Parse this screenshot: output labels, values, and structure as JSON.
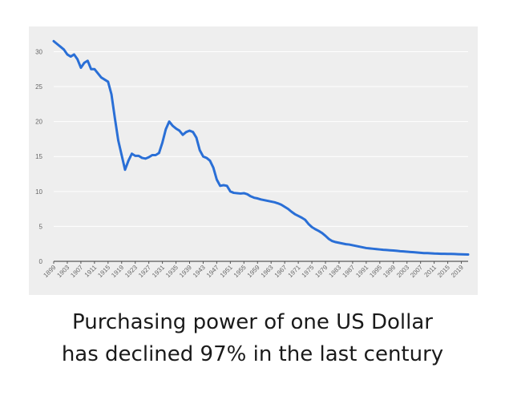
{
  "caption": {
    "line1": "Purchasing power of one US Dollar",
    "line2": "has declined 97% in the last century"
  },
  "colors": {
    "line": "#2a6fd6",
    "plot_bg": "#eeeeee",
    "grid": "#ffffff",
    "tick_text": "#666666"
  },
  "chart_data": {
    "type": "line",
    "title": "",
    "xlabel": "",
    "ylabel": "",
    "ylim": [
      0,
      32
    ],
    "yticks": [
      0,
      5,
      10,
      15,
      20,
      25,
      30
    ],
    "xlim": [
      1899,
      2021
    ],
    "xticks": [
      1899,
      1903,
      1907,
      1911,
      1915,
      1919,
      1923,
      1927,
      1931,
      1935,
      1939,
      1943,
      1947,
      1951,
      1955,
      1959,
      1963,
      1967,
      1971,
      1975,
      1979,
      1983,
      1987,
      1991,
      1995,
      1999,
      2003,
      2007,
      2011,
      2015,
      2019
    ],
    "grid": "horizontal",
    "series": [
      {
        "x": [
          1899,
          1900,
          1901,
          1902,
          1903,
          1904,
          1905,
          1906,
          1907,
          1908,
          1909,
          1910,
          1911,
          1912,
          1913,
          1914,
          1915,
          1916,
          1917,
          1918,
          1919,
          1920,
          1921,
          1922,
          1923,
          1924,
          1925,
          1926,
          1927,
          1928,
          1929,
          1930,
          1931,
          1932,
          1933,
          1934,
          1935,
          1936,
          1937,
          1938,
          1939,
          1940,
          1941,
          1942,
          1943,
          1944,
          1945,
          1946,
          1947,
          1948,
          1949,
          1950,
          1951,
          1952,
          1953,
          1954,
          1955,
          1956,
          1957,
          1958,
          1959,
          1960,
          1961,
          1962,
          1963,
          1964,
          1965,
          1966,
          1967,
          1968,
          1969,
          1970,
          1971,
          1972,
          1973,
          1974,
          1975,
          1976,
          1977,
          1978,
          1979,
          1980,
          1981,
          1982,
          1983,
          1984,
          1985,
          1986,
          1987,
          1988,
          1989,
          1990,
          1991,
          1992,
          1993,
          1994,
          1995,
          1996,
          1997,
          1998,
          1999,
          2000,
          2001,
          2002,
          2003,
          2004,
          2005,
          2006,
          2007,
          2008,
          2009,
          2010,
          2011,
          2012,
          2013,
          2014,
          2015,
          2016,
          2017,
          2018,
          2019,
          2020,
          2021
        ],
        "values": [
          31.5,
          31.1,
          30.7,
          30.3,
          29.6,
          29.3,
          29.6,
          28.9,
          27.7,
          28.4,
          28.7,
          27.5,
          27.5,
          26.9,
          26.3,
          26.0,
          25.7,
          23.9,
          20.5,
          17.3,
          15.2,
          13.1,
          14.4,
          15.4,
          15.1,
          15.1,
          14.8,
          14.7,
          14.9,
          15.2,
          15.2,
          15.5,
          17.0,
          18.9,
          20.0,
          19.4,
          19.0,
          18.7,
          18.1,
          18.5,
          18.7,
          18.5,
          17.7,
          15.9,
          15.0,
          14.8,
          14.4,
          13.4,
          11.7,
          10.8,
          10.9,
          10.8,
          10.0,
          9.8,
          9.75,
          9.7,
          9.75,
          9.6,
          9.3,
          9.1,
          9.0,
          8.85,
          8.75,
          8.65,
          8.55,
          8.45,
          8.3,
          8.1,
          7.8,
          7.5,
          7.1,
          6.75,
          6.5,
          6.25,
          5.95,
          5.35,
          4.9,
          4.6,
          4.35,
          4.05,
          3.65,
          3.2,
          2.9,
          2.75,
          2.65,
          2.55,
          2.45,
          2.4,
          2.3,
          2.2,
          2.1,
          2.0,
          1.9,
          1.85,
          1.8,
          1.75,
          1.7,
          1.65,
          1.62,
          1.58,
          1.55,
          1.5,
          1.45,
          1.42,
          1.38,
          1.34,
          1.3,
          1.26,
          1.22,
          1.18,
          1.18,
          1.15,
          1.12,
          1.1,
          1.08,
          1.07,
          1.06,
          1.06,
          1.04,
          1.02,
          1.0,
          0.99,
          0.98
        ]
      }
    ]
  }
}
